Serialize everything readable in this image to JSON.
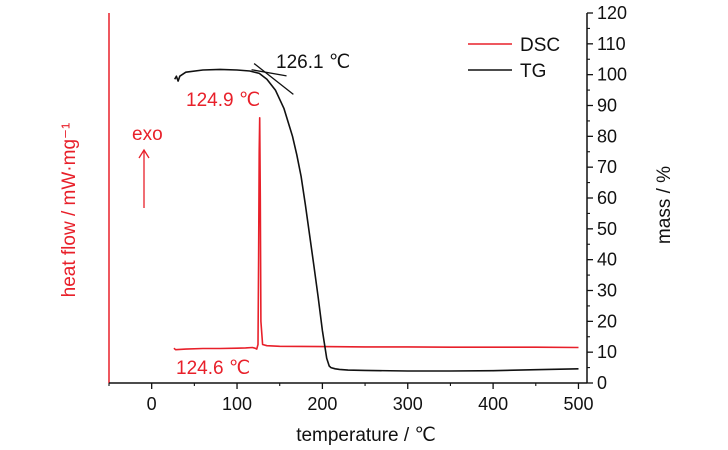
{
  "chart_data": {
    "type": "line",
    "title": "",
    "xlabel": "temperature / ℃",
    "ylabel_left": "heat flow / mW·mg⁻¹",
    "ylabel_right": "mass / %",
    "xlim": [
      -50,
      510
    ],
    "x_ticks": [
      0,
      100,
      200,
      300,
      400,
      500
    ],
    "y_right_lim": [
      0,
      120
    ],
    "y_right_ticks": [
      0,
      10,
      20,
      30,
      40,
      50,
      60,
      70,
      80,
      90,
      100,
      110,
      120
    ],
    "grid": false,
    "legend_position": "top-right",
    "series": [
      {
        "name": "DSC",
        "color": "#e8202a",
        "axis": "left",
        "x": [
          26,
          28,
          40,
          60,
          80,
          100,
          110,
          118,
          121,
          123,
          124.6,
          125.3,
          126,
          126.6,
          127.2,
          128,
          130,
          135,
          150,
          200,
          250,
          300,
          350,
          400,
          450,
          500
        ],
        "y": [
          11.3,
          10.8,
          11.0,
          11.2,
          11.2,
          11.3,
          11.4,
          11.5,
          11.3,
          11.0,
          12.5,
          40,
          75,
          86,
          60,
          20,
          12.5,
          12.1,
          11.9,
          11.8,
          11.7,
          11.7,
          11.6,
          11.6,
          11.6,
          11.5
        ]
      },
      {
        "name": "TG",
        "color": "#111111",
        "axis": "right",
        "x": [
          27,
          29,
          31,
          33,
          40,
          60,
          80,
          100,
          115,
          126.1,
          135,
          145,
          155,
          165,
          170,
          175,
          180,
          185,
          190,
          195,
          200,
          205,
          208,
          210,
          215,
          220,
          230,
          250,
          300,
          350,
          400,
          450,
          500
        ],
        "y": [
          98.5,
          99.5,
          97.9,
          99.5,
          100.8,
          101.5,
          101.7,
          101.5,
          101.2,
          100.4,
          98.5,
          95,
          89,
          80,
          74,
          67,
          58,
          48,
          38,
          28,
          17,
          8,
          5.5,
          5,
          4.6,
          4.4,
          4.2,
          4.1,
          3.9,
          3.9,
          4.0,
          4.3,
          4.6
        ]
      }
    ],
    "annotations": [
      {
        "text": "126.1 ℃",
        "color": "#111111"
      },
      {
        "text": "124.9 ℃",
        "color": "#e8202a"
      },
      {
        "text": "124.6 ℃",
        "color": "#e8202a"
      },
      {
        "text": "exo",
        "color": "#e8202a"
      }
    ]
  }
}
